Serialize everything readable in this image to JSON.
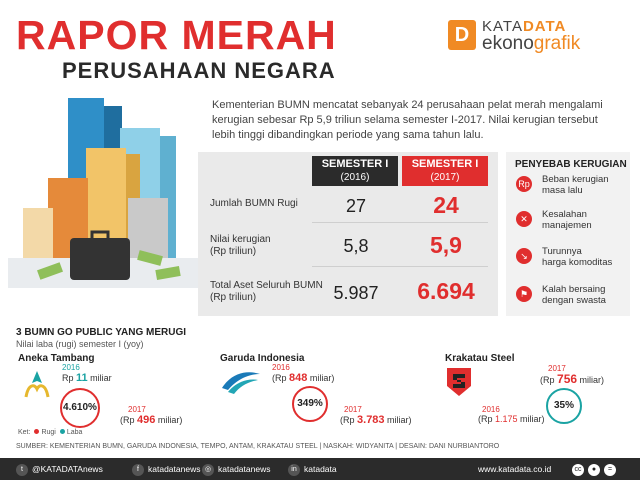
{
  "header": {
    "title_line1": "RAPOR MERAH",
    "title_line2": "PERUSAHAAN NEGARA",
    "logo_letter": "D",
    "logo_line1_a": "KATA",
    "logo_line1_b": "DATA",
    "logo_line2_a": "ekono",
    "logo_line2_b": "grafik"
  },
  "intro": "Kementerian BUMN mencatat sebanyak 24 perusahaan pelat merah mengalami kerugian sebesar Rp 5,9 triliun selama semester I-2017. Nilai kerugian tersebut lebih tinggi dibandingkan periode yang sama tahun lalu.",
  "table": {
    "col1_title": "SEMESTER I",
    "col1_year": "(2016)",
    "col2_title": "SEMESTER I",
    "col2_year": "(2017)",
    "rows": [
      {
        "label": "Jumlah BUMN Rugi",
        "sub": "",
        "v2016": "27",
        "v2017": "24"
      },
      {
        "label": "Nilai kerugian",
        "sub": "(Rp triliun)",
        "v2016": "5,8",
        "v2017": "5,9"
      },
      {
        "label": "Total Aset Seluruh BUMN",
        "sub": "(Rp triliun)",
        "v2016": "5.987",
        "v2017": "6.694"
      }
    ],
    "col1_color": "#2b2b2b",
    "col2_color": "#e02e2e"
  },
  "causes": {
    "title": "PENYEBAB KERUGIAN",
    "items": [
      {
        "icon": "money-bag-icon",
        "glyph": "Rp",
        "line1": "Beban kerugian",
        "line2": "masa lalu"
      },
      {
        "icon": "mistake-icon",
        "glyph": "✕",
        "line1": "Kesalahan",
        "line2": "manajemen"
      },
      {
        "icon": "chart-down-icon",
        "glyph": "↘",
        "line1": "Turunnya",
        "line2": "harga komoditas"
      },
      {
        "icon": "competition-icon",
        "glyph": "⚑",
        "line1": "Kalah bersaing",
        "line2": "dengan swasta"
      }
    ]
  },
  "section": {
    "title": "3 BUMN GO PUBLIC YANG MERUGI",
    "subtitle": "Nilai laba (rugi) semester I (yoy)"
  },
  "companies": [
    {
      "name": "Aneka Tambang",
      "y1": "2016",
      "a1_pre": "Rp ",
      "a1_num": "11",
      "a1_post": " miliar",
      "pct": "4.610%",
      "y2": "2017",
      "a2_pre": "(Rp ",
      "a2_num": "496",
      "a2_post": " miliar)"
    },
    {
      "name": "Garuda Indonesia",
      "y1": "2016",
      "a1_pre": "(Rp ",
      "a1_num": "848",
      "a1_post": " miliar)",
      "pct": "349%",
      "y2": "2017",
      "a2_pre": "(Rp ",
      "a2_num": "3.783",
      "a2_post": " miliar)"
    },
    {
      "name": "Krakatau Steel",
      "y1": "2017",
      "a1_pre": "(Rp ",
      "a1_num": "756",
      "a1_post": " miliar)",
      "pct": "35%",
      "y2": "2016",
      "a2_pre": "(Rp ",
      "a2_num": "1.175",
      "a2_post": " miliar)"
    }
  ],
  "legend": {
    "prefix": "Ket:",
    "rugi": "Rugi",
    "laba": "Laba",
    "rugi_color": "#e02e2e",
    "laba_color": "#1aa3a3"
  },
  "source": "SUMBER: KEMENTERIAN BUMN, GARUDA INDONESIA, TEMPO, ANTAM, KRAKATAU STEEL | NASKAH: WIDYANITA | DESAIN: DANI NURBIANTORO",
  "footer": {
    "twitter": "@KATADATAnews",
    "facebook": "katadatanews",
    "instagram": "katadatanews",
    "linkedin": "katadata",
    "website": "www.katadata.co.id"
  }
}
